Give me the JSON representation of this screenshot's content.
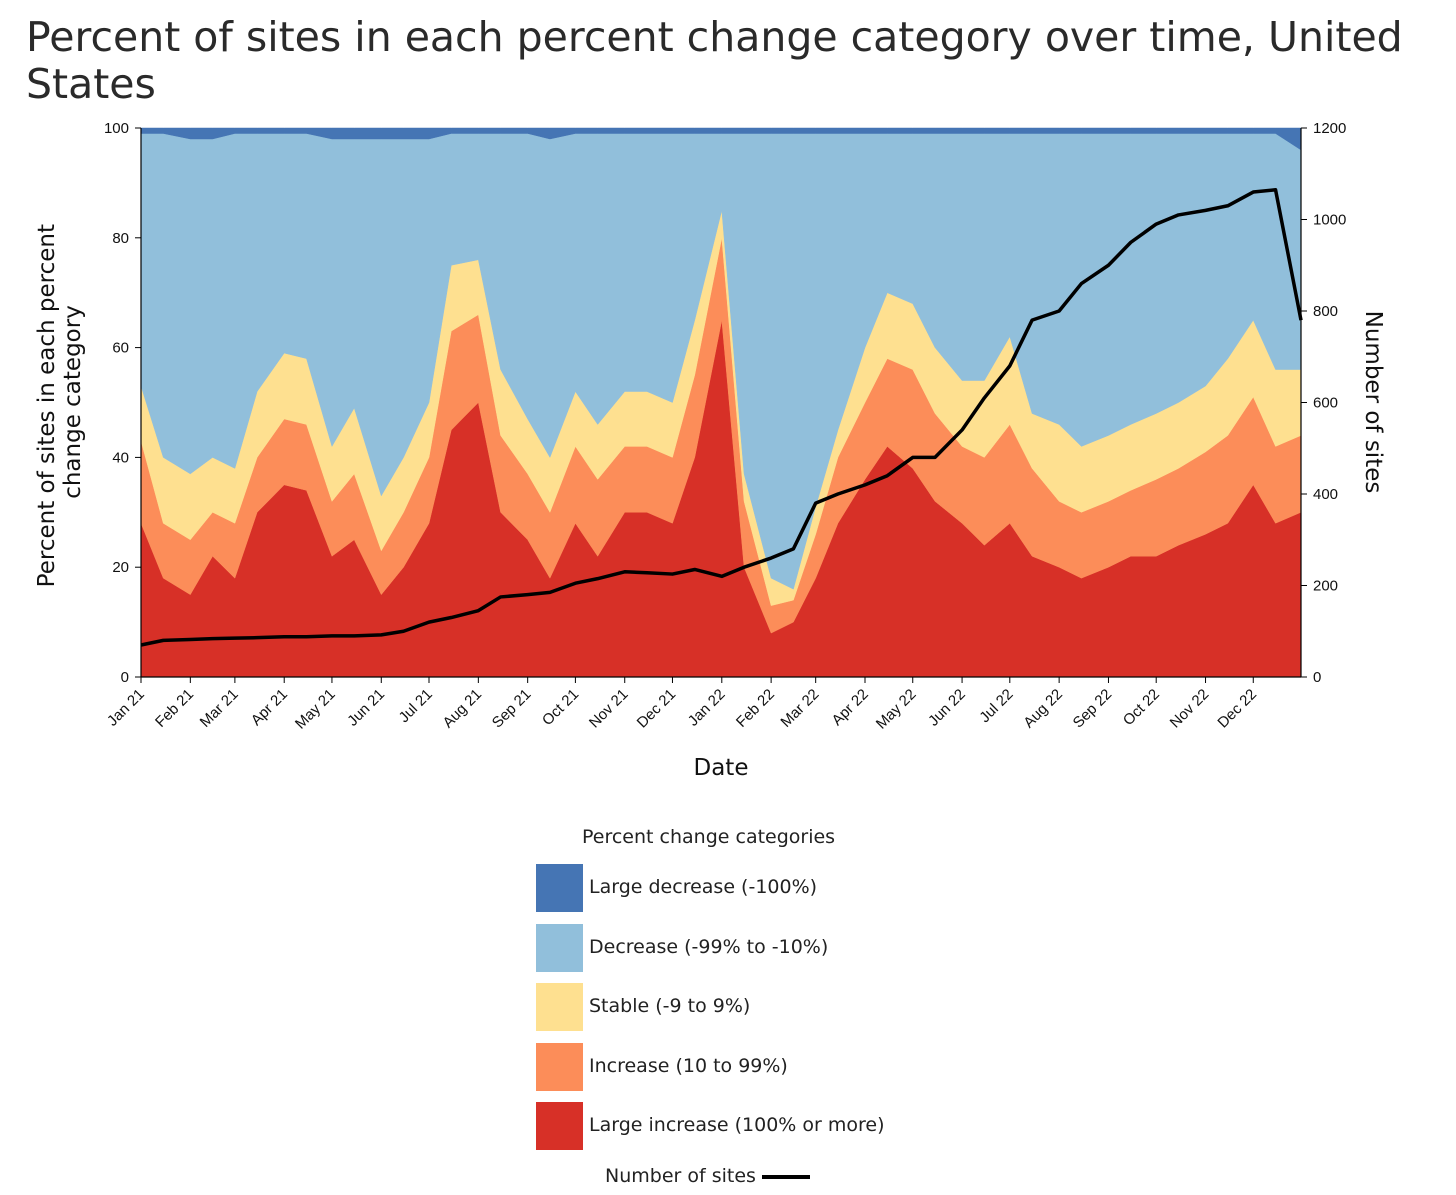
{
  "chart_data": {
    "type": "area",
    "title": "Percent of sites in each percent change category over time, United States",
    "xlabel": "Date",
    "ylabel": "Percent of sites in each percent change category",
    "y2label": "Number of sites",
    "ylim": [
      0,
      100
    ],
    "y2lim": [
      0,
      1200
    ],
    "yticks": [
      0,
      20,
      40,
      60,
      80,
      100
    ],
    "y2ticks": [
      0,
      200,
      400,
      600,
      800,
      1000,
      1200
    ],
    "x_ticks": [
      "Jan 21",
      "Feb 21",
      "Mar 21",
      "Apr 21",
      "May 21",
      "Jun 21",
      "Jul 21",
      "Aug 21",
      "Sep 21",
      "Oct 21",
      "Nov 21",
      "Dec 21",
      "Jan 22",
      "Feb 22",
      "Mar 22",
      "Apr 22",
      "May 22",
      "Jun 22",
      "Jul 22",
      "Aug 22",
      "Sep 22",
      "Oct 22",
      "Nov 22",
      "Dec 22"
    ],
    "x": [
      "2021-01-01",
      "2021-01-15",
      "2021-02-01",
      "2021-02-15",
      "2021-03-01",
      "2021-03-15",
      "2021-04-01",
      "2021-04-15",
      "2021-05-01",
      "2021-05-15",
      "2021-06-01",
      "2021-06-15",
      "2021-07-01",
      "2021-07-15",
      "2021-08-01",
      "2021-08-15",
      "2021-09-01",
      "2021-09-15",
      "2021-10-01",
      "2021-10-15",
      "2021-11-01",
      "2021-11-15",
      "2021-12-01",
      "2021-12-15",
      "2022-01-01",
      "2022-01-15",
      "2022-02-01",
      "2022-02-15",
      "2022-03-01",
      "2022-03-15",
      "2022-04-01",
      "2022-04-15",
      "2022-05-01",
      "2022-05-15",
      "2022-06-01",
      "2022-06-15",
      "2022-07-01",
      "2022-07-15",
      "2022-08-01",
      "2022-08-15",
      "2022-09-01",
      "2022-09-15",
      "2022-10-01",
      "2022-10-15",
      "2022-11-01",
      "2022-11-15",
      "2022-12-01",
      "2022-12-15",
      "2022-12-31"
    ],
    "legend_title": "Percent change categories",
    "legend_position": "bottom",
    "series": [
      {
        "name": "Large increase (100% or more)",
        "color": "#d73027",
        "kind": "area",
        "values": [
          28,
          18,
          15,
          22,
          18,
          30,
          35,
          34,
          22,
          25,
          15,
          20,
          28,
          45,
          50,
          30,
          25,
          18,
          28,
          22,
          30,
          30,
          28,
          40,
          65,
          20,
          8,
          10,
          18,
          28,
          36,
          42,
          38,
          32,
          28,
          24,
          28,
          22,
          20,
          18,
          20,
          22,
          22,
          24,
          26,
          28,
          35,
          28,
          30
        ]
      },
      {
        "name": "Increase (10 to 99%)",
        "color": "#fc8d59",
        "kind": "area",
        "values": [
          15,
          10,
          10,
          8,
          10,
          10,
          12,
          12,
          10,
          12,
          8,
          10,
          12,
          18,
          16,
          14,
          12,
          12,
          14,
          14,
          12,
          12,
          12,
          15,
          15,
          12,
          5,
          4,
          8,
          12,
          14,
          16,
          18,
          16,
          14,
          16,
          18,
          16,
          12,
          12,
          12,
          12,
          14,
          14,
          15,
          16,
          16,
          14,
          14
        ]
      },
      {
        "name": "Stable (-9 to 9%)",
        "color": "#fee090",
        "kind": "area",
        "values": [
          10,
          12,
          12,
          10,
          10,
          12,
          12,
          12,
          10,
          12,
          10,
          10,
          10,
          12,
          10,
          12,
          10,
          10,
          10,
          10,
          10,
          10,
          10,
          10,
          5,
          5,
          5,
          2,
          5,
          5,
          10,
          12,
          12,
          12,
          12,
          14,
          16,
          10,
          14,
          12,
          12,
          12,
          12,
          12,
          12,
          14,
          14,
          14,
          12
        ]
      },
      {
        "name": "Decrease (-99% to -10%)",
        "color": "#91bfdb",
        "kind": "area",
        "values": [
          46,
          59,
          61,
          58,
          61,
          47,
          40,
          41,
          56,
          49,
          65,
          58,
          48,
          24,
          23,
          43,
          52,
          58,
          47,
          53,
          47,
          47,
          49,
          34,
          14,
          62,
          81,
          83,
          68,
          54,
          39,
          29,
          31,
          39,
          45,
          45,
          37,
          51,
          53,
          57,
          55,
          53,
          51,
          49,
          46,
          41,
          34,
          43,
          40
        ]
      },
      {
        "name": "Large decrease (-100%)",
        "color": "#4575b4",
        "kind": "area",
        "values": [
          1,
          1,
          2,
          2,
          1,
          1,
          1,
          1,
          2,
          2,
          2,
          2,
          2,
          1,
          1,
          1,
          1,
          2,
          1,
          1,
          1,
          1,
          1,
          1,
          1,
          1,
          1,
          1,
          1,
          1,
          1,
          1,
          1,
          1,
          1,
          1,
          1,
          1,
          1,
          1,
          1,
          1,
          1,
          1,
          1,
          1,
          1,
          1,
          4
        ]
      },
      {
        "name": "Number of sites",
        "color": "#000000",
        "kind": "line",
        "axis": "right",
        "values": [
          70,
          80,
          82,
          84,
          85,
          86,
          88,
          88,
          90,
          90,
          92,
          100,
          120,
          130,
          145,
          175,
          180,
          185,
          205,
          215,
          230,
          228,
          225,
          235,
          220,
          240,
          260,
          280,
          380,
          400,
          420,
          440,
          480,
          480,
          540,
          610,
          680,
          780,
          800,
          860,
          900,
          950,
          990,
          1010,
          1020,
          1030,
          1060,
          1065,
          780
        ]
      }
    ]
  }
}
